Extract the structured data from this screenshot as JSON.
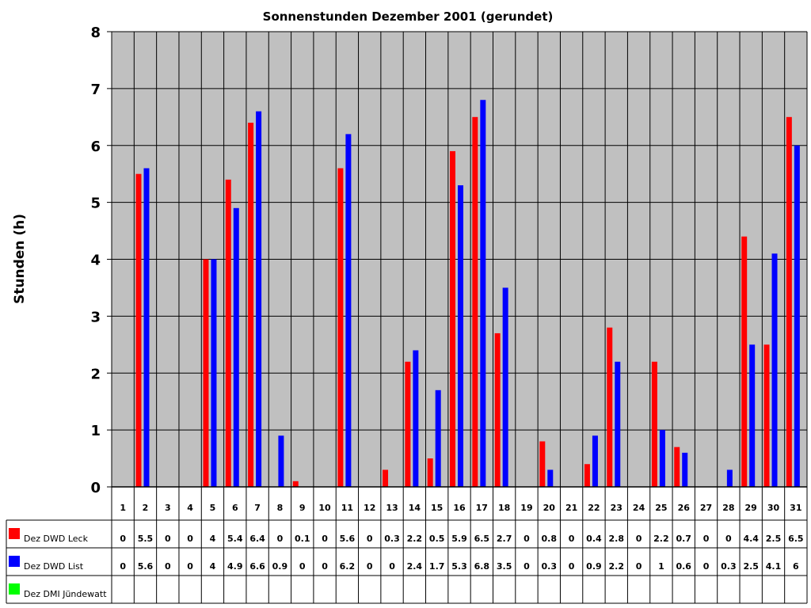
{
  "chart_data": {
    "type": "bar",
    "title": "Sonnenstunden Dezember 2001 (gerundet)",
    "xlabel": "",
    "ylabel": "Stunden (h)",
    "ylim": [
      0,
      8
    ],
    "yticks": [
      "0",
      "1",
      "2",
      "3",
      "4",
      "5",
      "6",
      "7",
      "8"
    ],
    "grid": true,
    "legend": "data-table-left",
    "plot_background": "#c0c0c0",
    "categories": [
      "1",
      "2",
      "3",
      "4",
      "5",
      "6",
      "7",
      "8",
      "9",
      "10",
      "11",
      "12",
      "13",
      "14",
      "15",
      "16",
      "17",
      "18",
      "19",
      "20",
      "21",
      "22",
      "23",
      "24",
      "25",
      "26",
      "27",
      "28",
      "29",
      "30",
      "31"
    ],
    "series": [
      {
        "name": "Dez DWD Leck",
        "color": "#ff0000",
        "values": [
          0,
          5.5,
          0,
          0,
          4,
          5.4,
          6.4,
          0,
          0.1,
          0,
          5.6,
          0,
          0.3,
          2.2,
          0.5,
          5.9,
          6.5,
          2.7,
          0,
          0.8,
          0,
          0.4,
          2.8,
          0,
          2.2,
          0.7,
          0,
          0,
          4.4,
          2.5,
          6.5
        ]
      },
      {
        "name": "Dez DWD List",
        "color": "#0000ff",
        "values": [
          0,
          5.6,
          0,
          0,
          4,
          4.9,
          6.6,
          0.9,
          0,
          0,
          6.2,
          0,
          0,
          2.4,
          1.7,
          5.3,
          6.8,
          3.5,
          0,
          0.3,
          0,
          0.9,
          2.2,
          0,
          1,
          0.6,
          0,
          0.3,
          2.5,
          4.1,
          6
        ]
      },
      {
        "name": "Dez DMI Jündewatt",
        "color": "#00ff00",
        "values": [
          null,
          null,
          null,
          null,
          null,
          null,
          null,
          null,
          null,
          null,
          null,
          null,
          null,
          null,
          null,
          null,
          null,
          null,
          null,
          null,
          null,
          null,
          null,
          null,
          null,
          null,
          null,
          null,
          null,
          null,
          null
        ]
      }
    ]
  }
}
